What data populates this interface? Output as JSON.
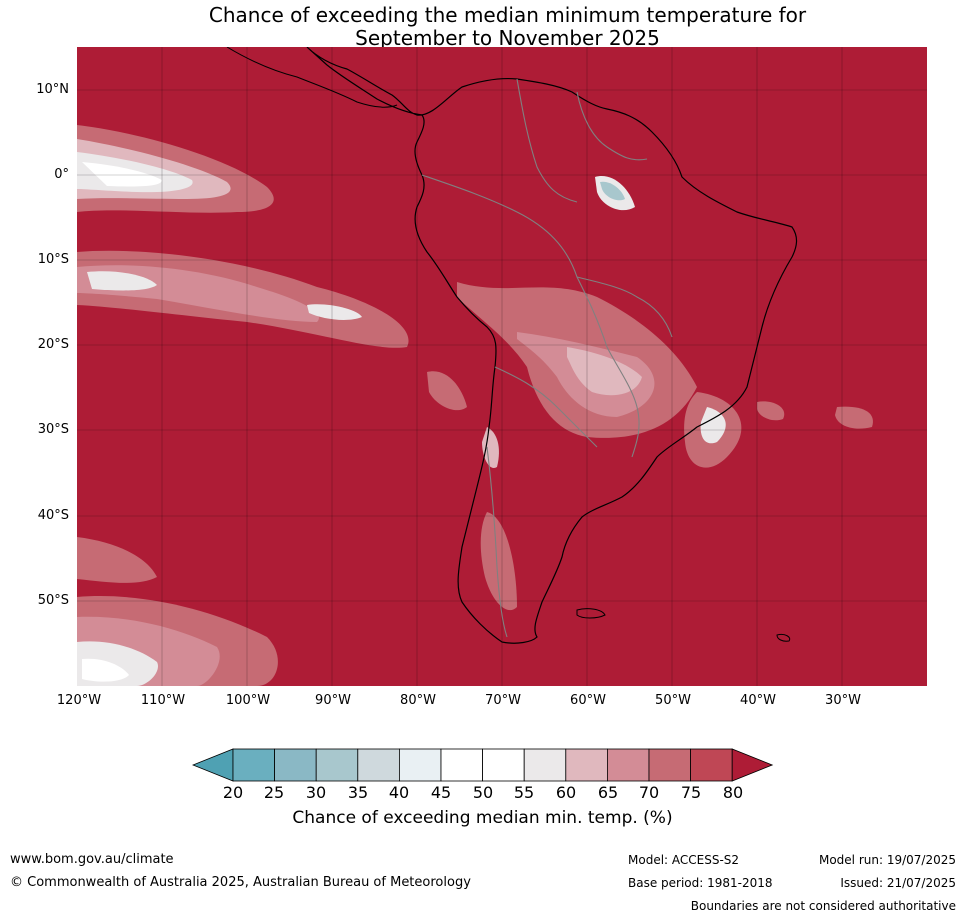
{
  "title": {
    "line1": "Chance of exceeding the median minimum temperature for",
    "line2": "September to November 2025"
  },
  "map": {
    "region": "South America",
    "projection": "equirectangular",
    "lon_range": [
      -120,
      -20
    ],
    "lat_range": [
      -60,
      15
    ],
    "lat_labels": [
      "10°N",
      "0°",
      "10°S",
      "20°S",
      "30°S",
      "40°S",
      "50°S"
    ],
    "lat_values": [
      10,
      0,
      -10,
      -20,
      -30,
      -40,
      -50
    ],
    "lon_labels": [
      "120°W",
      "110°W",
      "100°W",
      "90°W",
      "80°W",
      "70°W",
      "60°W",
      "50°W",
      "40°W",
      "30°W"
    ],
    "lon_values": [
      -120,
      -110,
      -100,
      -90,
      -80,
      -70,
      -60,
      -50,
      -40,
      -30
    ],
    "background_color": "#ae1c36",
    "coast_color": "#000000",
    "border_color": "#808080"
  },
  "colorbar": {
    "label": "Chance of exceeding median min. temp. (%)",
    "ticks": [
      "20",
      "25",
      "30",
      "35",
      "40",
      "45",
      "50",
      "55",
      "60",
      "65",
      "70",
      "75",
      "80"
    ],
    "colors": [
      "#4fa1b3",
      "#6aafbf",
      "#8ab8c5",
      "#a8c7cd",
      "#cfd9dd",
      "#e9f0f3",
      "#ffffff",
      "#ffffff",
      "#ebe9ea",
      "#e0b8be",
      "#d38c96",
      "#c66b74",
      "#bf4755",
      "#ae1c36"
    ]
  },
  "footer": {
    "website": "www.bom.gov.au/climate",
    "copyright": "© Commonwealth of Australia 2025, Australian Bureau of Meteorology",
    "model": "Model: ACCESS-S2",
    "base_period": "Base period: 1981-2018",
    "model_run": "Model run: 19/07/2025",
    "issued": "Issued: 21/07/2025",
    "disclaimer": "Boundaries are not considered authoritative"
  }
}
